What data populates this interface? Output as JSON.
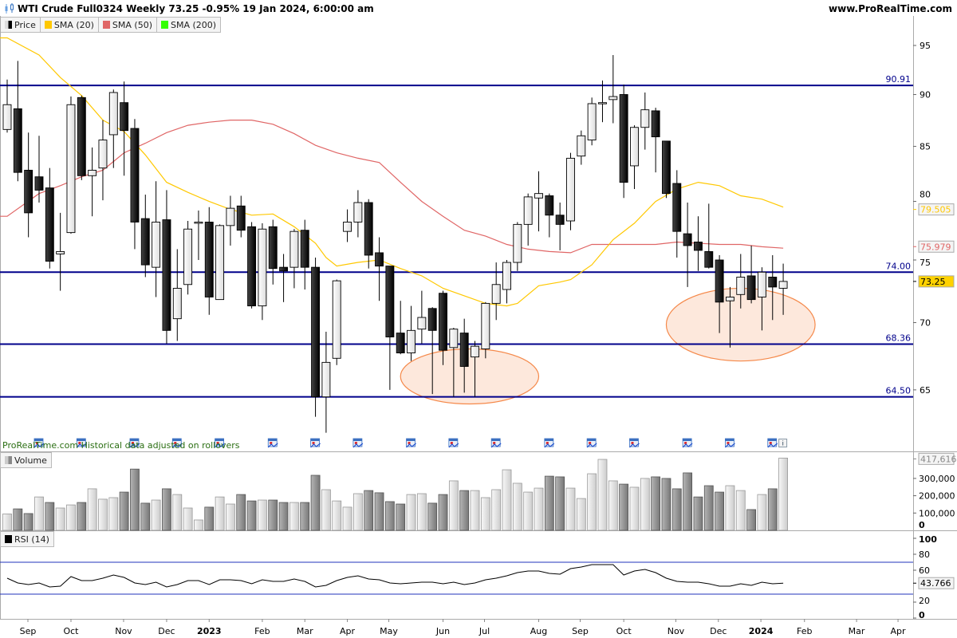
{
  "header": {
    "title": "WTI Crude Full0324 Weekly 73.25 -0.95% 19 Jan 2024, 6:00:00 am",
    "site": "www.ProRealTime.com"
  },
  "legend": {
    "price": "Price",
    "sma20": "SMA (20)",
    "sma50": "SMA (50)",
    "sma200": "SMA (200)",
    "volume": "Volume",
    "rsi": "RSI (14)"
  },
  "footnote": "ProRealTime.com  Historical data adjusted on rollovers",
  "colors": {
    "sma20": "#ffc800",
    "sma50": "#e06666",
    "sma200": "#33ff00",
    "levels": "#00008b",
    "zone_fill": "#fde8dc",
    "zone_stroke": "#f5894a",
    "last_price_bg": "#ffd200",
    "rsi_lines": "#2233bb"
  },
  "chart_data": {
    "type": "candlestick",
    "title": "WTI Crude Full0324 Weekly",
    "scale": "log",
    "ylim": [
      60.5,
      97
    ],
    "price_ticks": [
      "95",
      "90",
      "85",
      "80",
      "75",
      "70",
      "65"
    ],
    "last_price": "73.25",
    "sma20_last": "79.505",
    "sma50_last": "75.979",
    "levels": [
      {
        "value": 90.91,
        "label": "90.91"
      },
      {
        "value": 74.0,
        "label": "74.00"
      },
      {
        "value": 68.36,
        "label": "68.36"
      },
      {
        "value": 64.5,
        "label": "64.50"
      }
    ],
    "zones": [
      {
        "week_center": 43.5,
        "price_center": 66.0,
        "week_radius": 6.5,
        "price_top": 68.0,
        "price_bottom": 64.0
      },
      {
        "week_center": 69.0,
        "price_center": 70.3,
        "week_radius": 7.0,
        "price_top": 72.7,
        "price_bottom": 67.1
      }
    ],
    "ohlc": [
      [
        86.6,
        91.5,
        86.3,
        89.0
      ],
      [
        88.6,
        93.4,
        81.8,
        82.6
      ],
      [
        82.8,
        86.3,
        76.9,
        79.0
      ],
      [
        82.2,
        86.0,
        79.9,
        81.0
      ],
      [
        81.2,
        83.0,
        74.3,
        74.9
      ],
      [
        75.5,
        79.0,
        72.5,
        75.7
      ],
      [
        77.3,
        89.8,
        77.2,
        89.0
      ],
      [
        89.7,
        89.9,
        81.9,
        82.3
      ],
      [
        82.3,
        84.9,
        78.7,
        82.8
      ],
      [
        83.0,
        87.5,
        80.1,
        85.6
      ],
      [
        86.1,
        90.5,
        83.0,
        90.2
      ],
      [
        89.2,
        91.3,
        82.3,
        86.5
      ],
      [
        86.7,
        87.6,
        75.9,
        78.2
      ],
      [
        78.5,
        80.6,
        73.6,
        74.6
      ],
      [
        74.4,
        81.8,
        72.0,
        78.2
      ],
      [
        78.4,
        81.0,
        68.4,
        69.4
      ],
      [
        70.3,
        75.9,
        68.6,
        72.7
      ],
      [
        73.0,
        78.3,
        72.2,
        77.6
      ],
      [
        78.1,
        79.2,
        75.0,
        78.2
      ],
      [
        78.2,
        79.5,
        70.6,
        72.0
      ],
      [
        71.8,
        78.0,
        71.8,
        77.9
      ],
      [
        77.9,
        80.5,
        76.2,
        79.4
      ],
      [
        79.6,
        80.5,
        76.9,
        77.5
      ],
      [
        77.8,
        78.2,
        71.1,
        71.3
      ],
      [
        71.3,
        78.1,
        70.2,
        77.6
      ],
      [
        77.8,
        78.4,
        73.0,
        74.3
      ],
      [
        74.4,
        75.5,
        71.6,
        74.1
      ],
      [
        74.4,
        77.6,
        72.7,
        77.4
      ],
      [
        77.5,
        78.4,
        72.6,
        74.4
      ],
      [
        74.4,
        75.2,
        63.1,
        64.5
      ],
      [
        64.5,
        69.3,
        62.0,
        67.0
      ],
      [
        67.3,
        73.4,
        66.8,
        73.3
      ],
      [
        77.4,
        79.3,
        76.5,
        78.2
      ],
      [
        78.2,
        81.0,
        76.9,
        79.9
      ],
      [
        79.9,
        80.2,
        74.3,
        75.4
      ],
      [
        75.6,
        76.9,
        71.7,
        74.5
      ],
      [
        74.5,
        74.5,
        65.0,
        68.9
      ],
      [
        69.2,
        71.7,
        67.6,
        67.7
      ],
      [
        67.7,
        71.3,
        67.1,
        69.4
      ],
      [
        69.5,
        72.5,
        68.4,
        70.4
      ],
      [
        71.1,
        71.2,
        64.7,
        69.4
      ],
      [
        72.3,
        72.5,
        66.8,
        67.9
      ],
      [
        68.1,
        69.6,
        64.5,
        69.5
      ],
      [
        69.2,
        70.3,
        64.8,
        66.7
      ],
      [
        67.4,
        68.6,
        64.5,
        68.2
      ],
      [
        68.0,
        71.6,
        67.3,
        71.5
      ],
      [
        71.5,
        74.8,
        70.2,
        73.0
      ],
      [
        72.6,
        75.0,
        71.5,
        74.8
      ],
      [
        74.8,
        78.2,
        74.1,
        78.0
      ],
      [
        78.0,
        80.7,
        76.2,
        80.4
      ],
      [
        80.3,
        82.7,
        77.4,
        80.7
      ],
      [
        80.5,
        80.7,
        76.9,
        78.8
      ],
      [
        78.8,
        79.9,
        75.8,
        78.0
      ],
      [
        78.3,
        84.4,
        77.5,
        83.9
      ],
      [
        84.1,
        86.5,
        83.3,
        86.0
      ],
      [
        85.6,
        89.7,
        85.1,
        89.1
      ],
      [
        89.1,
        91.4,
        87.3,
        89.2
      ],
      [
        89.5,
        94.0,
        87.2,
        89.8
      ],
      [
        90.0,
        91.0,
        80.3,
        81.7
      ],
      [
        83.2,
        87.0,
        81.1,
        86.8
      ],
      [
        86.8,
        90.2,
        84.7,
        88.5
      ],
      [
        88.4,
        88.7,
        82.6,
        85.9
      ],
      [
        85.5,
        85.5,
        80.3,
        80.7
      ],
      [
        81.6,
        82.8,
        75.2,
        77.4
      ],
      [
        77.2,
        79.9,
        72.8,
        76.2
      ],
      [
        76.5,
        78.7,
        74.1,
        75.8
      ],
      [
        75.7,
        79.8,
        74.3,
        74.4
      ],
      [
        75.0,
        75.4,
        69.2,
        71.6
      ],
      [
        71.7,
        72.8,
        68.1,
        72.0
      ],
      [
        72.2,
        75.5,
        71.1,
        73.6
      ],
      [
        73.7,
        76.2,
        71.5,
        71.8
      ],
      [
        72.0,
        74.4,
        69.4,
        74.0
      ],
      [
        73.6,
        75.4,
        70.2,
        72.8
      ],
      [
        72.7,
        74.7,
        70.6,
        73.25
      ]
    ],
    "sma20": [
      [
        -0.7,
        95.8
      ],
      [
        0,
        95.8
      ],
      [
        3,
        94.0
      ],
      [
        5,
        91.7
      ],
      [
        7,
        89.9
      ],
      [
        9,
        87.5
      ],
      [
        11,
        86.4
      ],
      [
        13,
        84.2
      ],
      [
        15,
        81.7
      ],
      [
        17,
        80.8
      ],
      [
        19,
        80.0
      ],
      [
        21,
        79.3
      ],
      [
        23,
        78.8
      ],
      [
        25,
        78.9
      ],
      [
        27,
        77.8
      ],
      [
        29,
        76.4
      ],
      [
        30,
        75.2
      ],
      [
        31,
        74.5
      ],
      [
        33,
        74.8
      ],
      [
        35,
        75.0
      ],
      [
        37,
        74.3
      ],
      [
        39,
        73.7
      ],
      [
        41,
        72.7
      ],
      [
        43,
        72.1
      ],
      [
        45,
        71.5
      ],
      [
        47,
        71.3
      ],
      [
        48,
        71.5
      ],
      [
        50,
        72.9
      ],
      [
        52,
        73.2
      ],
      [
        53,
        73.4
      ],
      [
        55,
        74.6
      ],
      [
        57,
        76.7
      ],
      [
        59,
        78.1
      ],
      [
        61,
        80.0
      ],
      [
        63,
        81.1
      ],
      [
        65,
        81.7
      ],
      [
        67,
        81.4
      ],
      [
        69,
        80.5
      ],
      [
        71,
        80.2
      ],
      [
        73,
        79.5
      ]
    ],
    "sma50": [
      [
        -0.7,
        78.7
      ],
      [
        0,
        78.7
      ],
      [
        3,
        80.7
      ],
      [
        5,
        81.4
      ],
      [
        7,
        82.2
      ],
      [
        9,
        82.8
      ],
      [
        11,
        84.4
      ],
      [
        13,
        85.3
      ],
      [
        15,
        86.3
      ],
      [
        17,
        87.0
      ],
      [
        19,
        87.3
      ],
      [
        21,
        87.5
      ],
      [
        23,
        87.5
      ],
      [
        25,
        87.1
      ],
      [
        27,
        86.2
      ],
      [
        29,
        85.1
      ],
      [
        31,
        84.4
      ],
      [
        33,
        83.9
      ],
      [
        35,
        83.5
      ],
      [
        37,
        81.7
      ],
      [
        39,
        80.0
      ],
      [
        41,
        78.7
      ],
      [
        43,
        77.5
      ],
      [
        45,
        77.0
      ],
      [
        47,
        76.3
      ],
      [
        49,
        75.9
      ],
      [
        51,
        75.7
      ],
      [
        53,
        75.6
      ],
      [
        55,
        76.3
      ],
      [
        57,
        76.3
      ],
      [
        59,
        76.3
      ],
      [
        61,
        76.3
      ],
      [
        63,
        76.5
      ],
      [
        65,
        76.4
      ],
      [
        67,
        76.3
      ],
      [
        69,
        76.3
      ],
      [
        71,
        76.1
      ],
      [
        73,
        75.98
      ]
    ],
    "volume": [
      95000,
      124000,
      97000,
      193000,
      161000,
      129000,
      147000,
      161000,
      240000,
      180000,
      189000,
      221000,
      354000,
      157000,
      175000,
      240000,
      207000,
      129000,
      60000,
      134000,
      193000,
      152000,
      207000,
      170000,
      175000,
      175000,
      161000,
      161000,
      161000,
      318000,
      235000,
      170000,
      134000,
      212000,
      230000,
      217000,
      166000,
      152000,
      207000,
      212000,
      157000,
      207000,
      286000,
      230000,
      230000,
      189000,
      235000,
      350000,
      272000,
      221000,
      244000,
      313000,
      309000,
      244000,
      184000,
      327000,
      410000,
      286000,
      267000,
      249000,
      300000,
      309000,
      300000,
      240000,
      332000,
      193000,
      258000,
      221000,
      258000,
      230000,
      120000,
      207000,
      240000,
      417616
    ],
    "volume_last": "417,616",
    "volume_ticks": [
      "300,000",
      "200,000",
      "100,000",
      "0"
    ],
    "rsi": [
      50,
      44,
      42,
      44,
      39,
      40,
      52,
      47,
      47,
      50,
      54,
      51,
      44,
      42,
      45,
      39,
      42,
      47,
      47,
      42,
      48,
      48,
      47,
      43,
      48,
      46,
      46,
      49,
      46,
      39,
      41,
      47,
      51,
      53,
      49,
      48,
      44,
      43,
      44,
      45,
      45,
      43,
      45,
      42,
      44,
      48,
      50,
      53,
      57,
      59,
      59,
      56,
      55,
      62,
      64,
      67,
      67,
      67,
      54,
      59,
      61,
      57,
      50,
      46,
      45,
      45,
      43,
      40,
      40,
      43,
      41,
      45,
      43,
      43.766
    ],
    "rsi_last": "43.766",
    "rsi_levels": [
      70,
      30
    ],
    "rsi_ticks": [
      "100",
      "80",
      "60",
      "20",
      "0"
    ],
    "event_weeks": [
      3,
      7,
      12,
      16,
      20,
      25,
      29,
      33,
      38,
      42,
      46,
      51,
      55,
      59,
      64,
      68,
      72
    ],
    "x_ticks": [
      {
        "week": 1.95,
        "label": "Sep"
      },
      {
        "week": 6.0,
        "label": "Oct"
      },
      {
        "week": 10.95,
        "label": "Nov"
      },
      {
        "week": 15.0,
        "label": "Dec"
      },
      {
        "week": 19.0,
        "label": "2023",
        "bold": true
      },
      {
        "week": 24.0,
        "label": "Feb"
      },
      {
        "week": 28.0,
        "label": "Mar"
      },
      {
        "week": 32.0,
        "label": "Apr"
      },
      {
        "week": 35.9,
        "label": "May"
      },
      {
        "week": 41.0,
        "label": "Jun"
      },
      {
        "week": 44.9,
        "label": "Jul"
      },
      {
        "week": 50.0,
        "label": "Aug"
      },
      {
        "week": 53.9,
        "label": "Sep"
      },
      {
        "week": 58.0,
        "label": "Oct"
      },
      {
        "week": 62.9,
        "label": "Nov"
      },
      {
        "week": 66.9,
        "label": "Dec"
      },
      {
        "week": 70.9,
        "label": "2024",
        "bold": true
      },
      {
        "week": 75.0,
        "label": "Feb"
      },
      {
        "week": 79.9,
        "label": "Mar"
      },
      {
        "week": 83.8,
        "label": "Apr"
      }
    ]
  }
}
